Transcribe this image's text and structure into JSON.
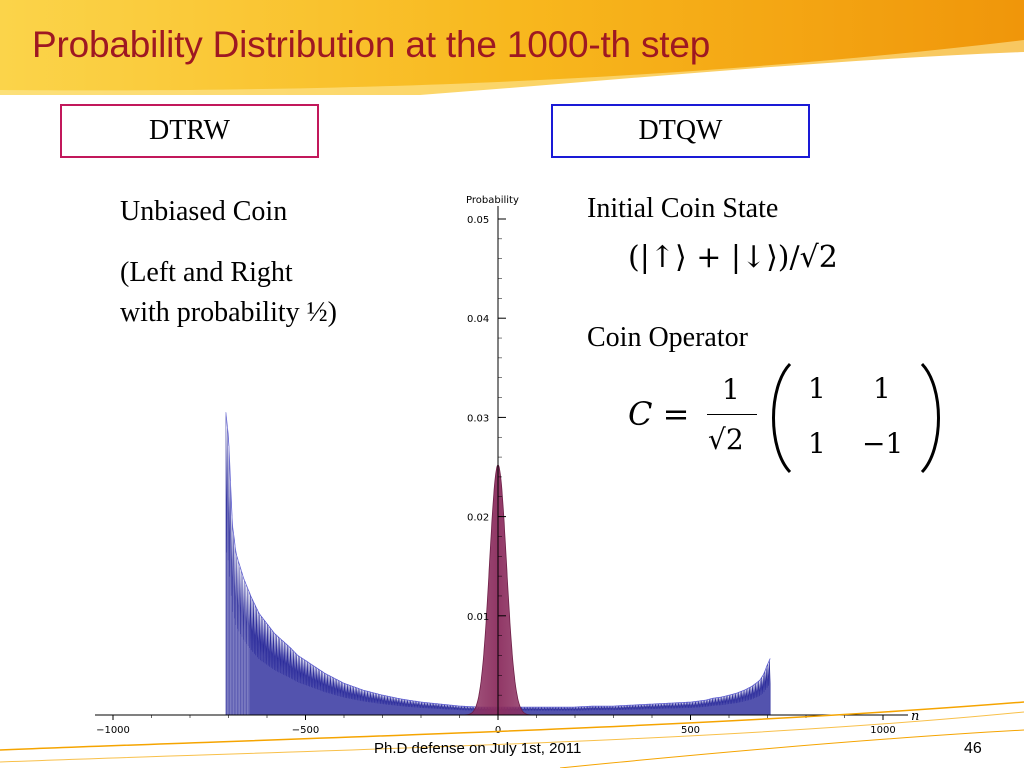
{
  "slide": {
    "title": "Probability Distribution at the 1000-th step",
    "footer": "Ph.D defense on July 1st, 2011",
    "page_number": "46"
  },
  "labels": {
    "dtrw": "DTRW",
    "dtqw": "DTQW"
  },
  "left_text": {
    "line1": "Unbiased Coin",
    "line2": "(Left and Right",
    "line3": "with probability ½)"
  },
  "right_text": {
    "initial_state_title": "Initial Coin State",
    "coin_operator_title": "Coin Operator",
    "state_formula": "(|↑⟩ + |↓⟩)/√2",
    "operator_lhs": "C =",
    "operator_fraction_num": "1",
    "operator_fraction_den": "√2",
    "matrix": [
      [
        "1",
        "1"
      ],
      [
        "1",
        "−1"
      ]
    ]
  },
  "colors": {
    "title": "#9e1822",
    "header_orange": "#f5a400",
    "dtrw_border": "#c2185b",
    "dtqw_border": "#1a1ad6",
    "dtrw_fill": "#8b2d5e",
    "dtqw_fill": "#2d2d9c"
  },
  "chart_data": {
    "type": "area",
    "ylabel": "Probability",
    "xlabel": "n",
    "xlim": [
      -1050,
      1050
    ],
    "ylim": [
      0,
      0.05
    ],
    "x_ticks": [
      -1000,
      -500,
      0,
      500,
      1000
    ],
    "x_tick_labels": [
      "−1000",
      "−500",
      "0",
      "500",
      "1000"
    ],
    "y_ticks": [
      0.01,
      0.02,
      0.03,
      0.04,
      0.05
    ],
    "y_tick_labels": [
      "0.01",
      "0.02",
      "0.03",
      "0.04",
      "0.05"
    ],
    "series": [
      {
        "id": "dtrw",
        "model": "gaussian",
        "peak_x": 0,
        "peak_y": 0.0252,
        "sigma": 22,
        "color": "#8b2d5e"
      },
      {
        "id": "dtqw",
        "model": "quantum_walk_envelope",
        "x": [
          -707,
          -700,
          -690,
          -680,
          -660,
          -640,
          -620,
          -600,
          -580,
          -560,
          -540,
          -520,
          -500,
          -450,
          -400,
          -350,
          -300,
          -250,
          -200,
          -150,
          -100,
          -50,
          0,
          50,
          100,
          150,
          200,
          250,
          300,
          350,
          400,
          450,
          500,
          520,
          540,
          560,
          580,
          600,
          620,
          640,
          660,
          680,
          690,
          700,
          707
        ],
        "y": [
          0.0305,
          0.028,
          0.0192,
          0.0162,
          0.0137,
          0.0118,
          0.0102,
          0.0092,
          0.0082,
          0.0075,
          0.0068,
          0.006,
          0.0055,
          0.0042,
          0.0032,
          0.0025,
          0.002,
          0.0016,
          0.0013,
          0.0011,
          0.0009,
          0.0008,
          0.0008,
          0.0008,
          0.0008,
          0.0008,
          0.0008,
          0.0009,
          0.0009,
          0.001,
          0.0011,
          0.0012,
          0.0013,
          0.0014,
          0.0015,
          0.0017,
          0.0018,
          0.002,
          0.0022,
          0.0025,
          0.0029,
          0.0035,
          0.0041,
          0.0051,
          0.0057
        ],
        "color": "#2d2d9c"
      }
    ]
  }
}
